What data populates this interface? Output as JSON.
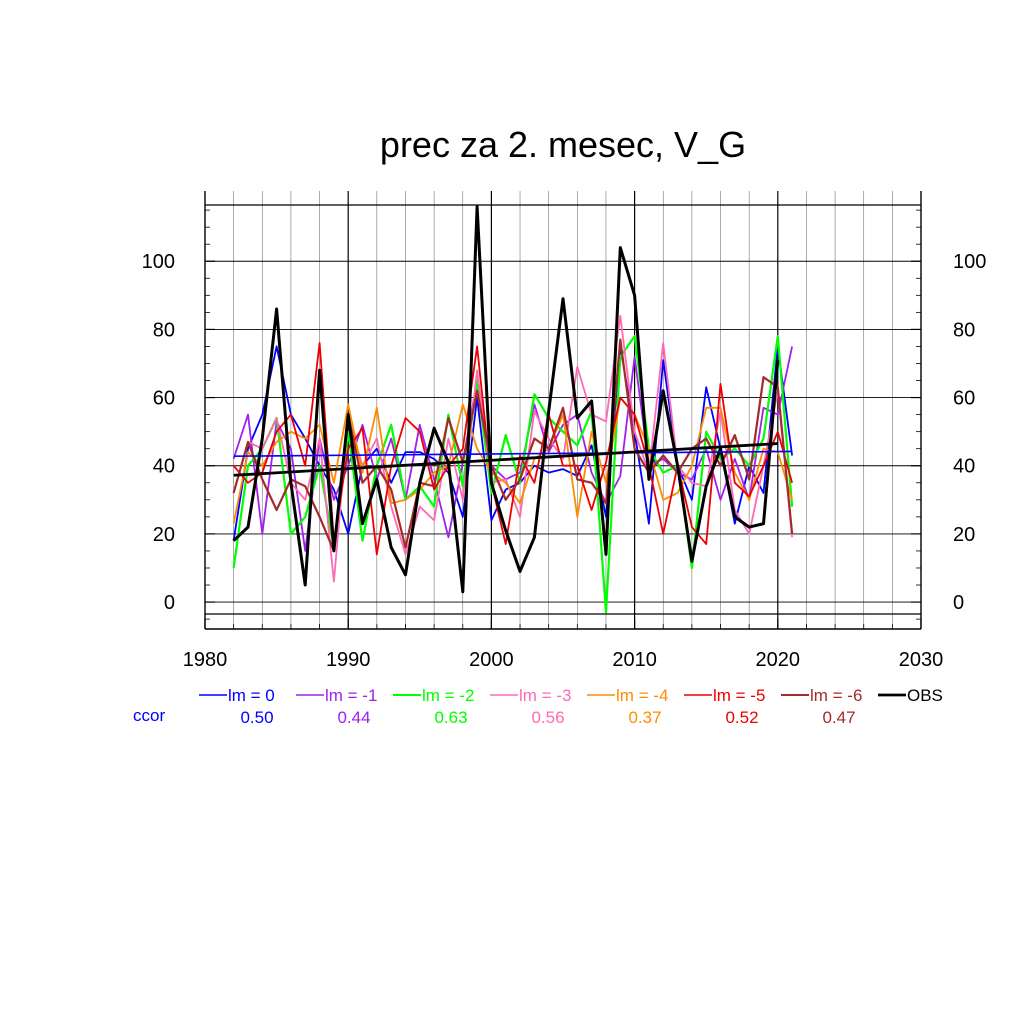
{
  "chart_data": {
    "type": "line",
    "title": "prec za 2. mesec, V_G",
    "xlabel": "",
    "ylabel": "",
    "xlim": [
      1980,
      2030
    ],
    "ylim": [
      -3.5,
      116.5
    ],
    "x_ticks": [
      "1980",
      "1990",
      "2000",
      "2010",
      "2020",
      "2030"
    ],
    "y_ticks": [
      "0",
      "20",
      "40",
      "60",
      "80",
      "100"
    ],
    "grid": true,
    "legend_position": "bottom",
    "ccor_label": "ccor",
    "x": [
      1982,
      1983,
      1984,
      1985,
      1986,
      1987,
      1988,
      1989,
      1990,
      1991,
      1992,
      1993,
      1994,
      1995,
      1996,
      1997,
      1998,
      1999,
      2000,
      2001,
      2002,
      2003,
      2004,
      2005,
      2006,
      2007,
      2008,
      2009,
      2010,
      2011,
      2012,
      2013,
      2014,
      2015,
      2016,
      2017,
      2018,
      2019,
      2020,
      2021
    ],
    "series": [
      {
        "name": "lm = 0",
        "ccor": "0.50",
        "color": "#0000ff",
        "width": 1.8,
        "values": [
          18,
          45,
          55,
          75,
          55,
          48,
          40,
          33,
          20,
          40,
          45,
          35,
          44,
          44,
          42,
          38,
          25,
          60,
          24,
          33,
          35,
          40,
          38,
          39,
          37,
          46,
          25,
          75,
          50,
          23,
          71,
          40,
          30,
          63,
          45,
          23,
          40,
          32,
          75,
          43
        ]
      },
      {
        "name": "lm = -1",
        "ccor": "0.44",
        "color": "#a020f0",
        "width": 1.8,
        "values": [
          42,
          55,
          20,
          53,
          45,
          15,
          48,
          30,
          40,
          52,
          36,
          48,
          30,
          52,
          36,
          19,
          41,
          65,
          40,
          36,
          38,
          58,
          44,
          52,
          55,
          38,
          29,
          37,
          72,
          40,
          42,
          38,
          36,
          45,
          30,
          42,
          30,
          57,
          55,
          75
        ]
      },
      {
        "name": "lm = -2",
        "ccor": "0.63",
        "color": "#00ff00",
        "width": 2.2,
        "values": [
          10,
          40,
          45,
          54,
          20,
          25,
          40,
          16,
          50,
          18,
          40,
          52,
          30,
          34,
          28,
          55,
          34,
          65,
          32,
          49,
          35,
          61,
          54,
          50,
          46,
          56,
          -3,
          72,
          78,
          45,
          38,
          40,
          10,
          50,
          42,
          45,
          40,
          48,
          78,
          28
        ]
      },
      {
        "name": "lm = -3",
        "ccor": "0.56",
        "color": "#ff69b4",
        "width": 1.8,
        "values": [
          32,
          47,
          45,
          54,
          35,
          30,
          48,
          6,
          54,
          40,
          48,
          28,
          14,
          28,
          24,
          48,
          30,
          68,
          35,
          36,
          25,
          56,
          48,
          42,
          69,
          55,
          53,
          84,
          50,
          38,
          76,
          40,
          35,
          34,
          56,
          27,
          20,
          40,
          62,
          19
        ]
      },
      {
        "name": "lm = -4",
        "ccor": "0.37",
        "color": "#ff8c00",
        "width": 1.8,
        "values": [
          23,
          44,
          40,
          47,
          50,
          48,
          52,
          35,
          58,
          38,
          57,
          29,
          30,
          33,
          38,
          40,
          58,
          45,
          38,
          35,
          29,
          42,
          45,
          55,
          25,
          50,
          35,
          60,
          55,
          45,
          30,
          32,
          40,
          57,
          57,
          38,
          30,
          45,
          44,
          30
        ]
      },
      {
        "name": "lm = -5",
        "ccor": "0.52",
        "color": "#ee0000",
        "width": 1.8,
        "values": [
          40,
          35,
          38,
          50,
          55,
          40,
          76,
          18,
          45,
          51,
          14,
          40,
          54,
          50,
          33,
          40,
          45,
          75,
          35,
          17,
          43,
          35,
          55,
          40,
          40,
          27,
          41,
          60,
          55,
          40,
          20,
          40,
          22,
          17,
          64,
          35,
          31,
          40,
          50,
          35
        ]
      },
      {
        "name": "lm = -6",
        "ccor": "0.47",
        "color": "#a52a2a",
        "width": 2.2,
        "values": [
          32,
          47,
          36,
          27,
          36,
          34,
          25,
          15,
          55,
          35,
          40,
          33,
          16,
          35,
          34,
          54,
          41,
          62,
          40,
          30,
          36,
          48,
          45,
          57,
          36,
          35,
          29,
          77,
          45,
          38,
          43,
          38,
          45,
          48,
          40,
          49,
          36,
          66,
          63,
          20
        ]
      },
      {
        "name": "OBS",
        "ccor": "",
        "color": "#000000",
        "width": 3.0,
        "values": [
          18,
          22,
          48,
          86,
          35,
          5,
          68,
          15,
          55,
          23,
          36,
          16,
          8,
          35,
          51,
          41,
          3,
          116,
          35,
          21,
          9,
          19,
          56,
          89,
          54,
          59,
          14,
          104,
          90,
          36,
          62,
          40,
          12,
          34,
          45,
          25,
          22,
          23,
          71,
          null
        ]
      }
    ],
    "trend_lines": [
      {
        "series": "lm = 0",
        "color": "#0000ff",
        "width": 1.6,
        "x": [
          1982,
          2021
        ],
        "y": [
          42.8,
          44.2
        ]
      },
      {
        "series": "OBS",
        "color": "#000000",
        "width": 2.8,
        "x": [
          1982,
          2020
        ],
        "y": [
          37.2,
          46.5
        ]
      }
    ]
  }
}
